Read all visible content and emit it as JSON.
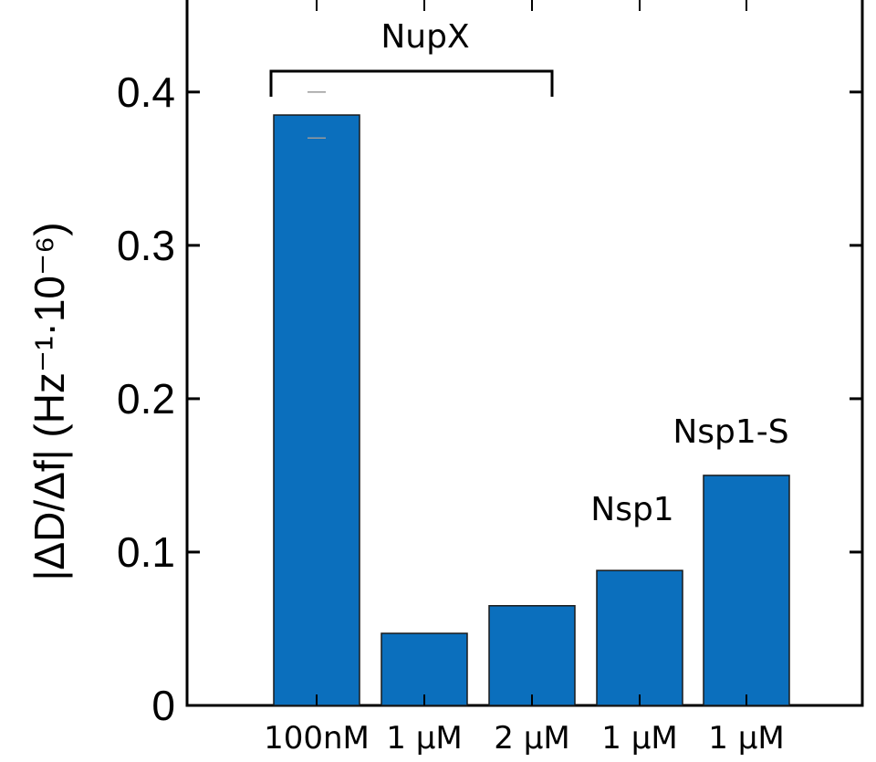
{
  "chart_data": {
    "type": "bar",
    "categories": [
      "100nM",
      "1 µM",
      "2 µM",
      "1 µM",
      "1 µM"
    ],
    "values": [
      0.385,
      0.047,
      0.065,
      0.088,
      0.15
    ],
    "error_low": [
      0.37,
      null,
      null,
      null,
      null
    ],
    "error_high": [
      0.4,
      null,
      null,
      null,
      null
    ],
    "ylim": [
      0,
      0.46
    ],
    "yticks": [
      0,
      0.1,
      0.2,
      0.3,
      0.4
    ],
    "ytick_labels": [
      "0",
      "0.1",
      "0.2",
      "0.3",
      "0.4"
    ],
    "ylabel": "|ΔD/Δf| (Hz⁻¹·10⁻⁶)",
    "xlabel": "",
    "grid": false,
    "bar_color": "#0b6fbd",
    "annotations": {
      "nupx": "NupX",
      "nsp1": "Nsp1",
      "nsp1s": "Nsp1-S"
    }
  }
}
